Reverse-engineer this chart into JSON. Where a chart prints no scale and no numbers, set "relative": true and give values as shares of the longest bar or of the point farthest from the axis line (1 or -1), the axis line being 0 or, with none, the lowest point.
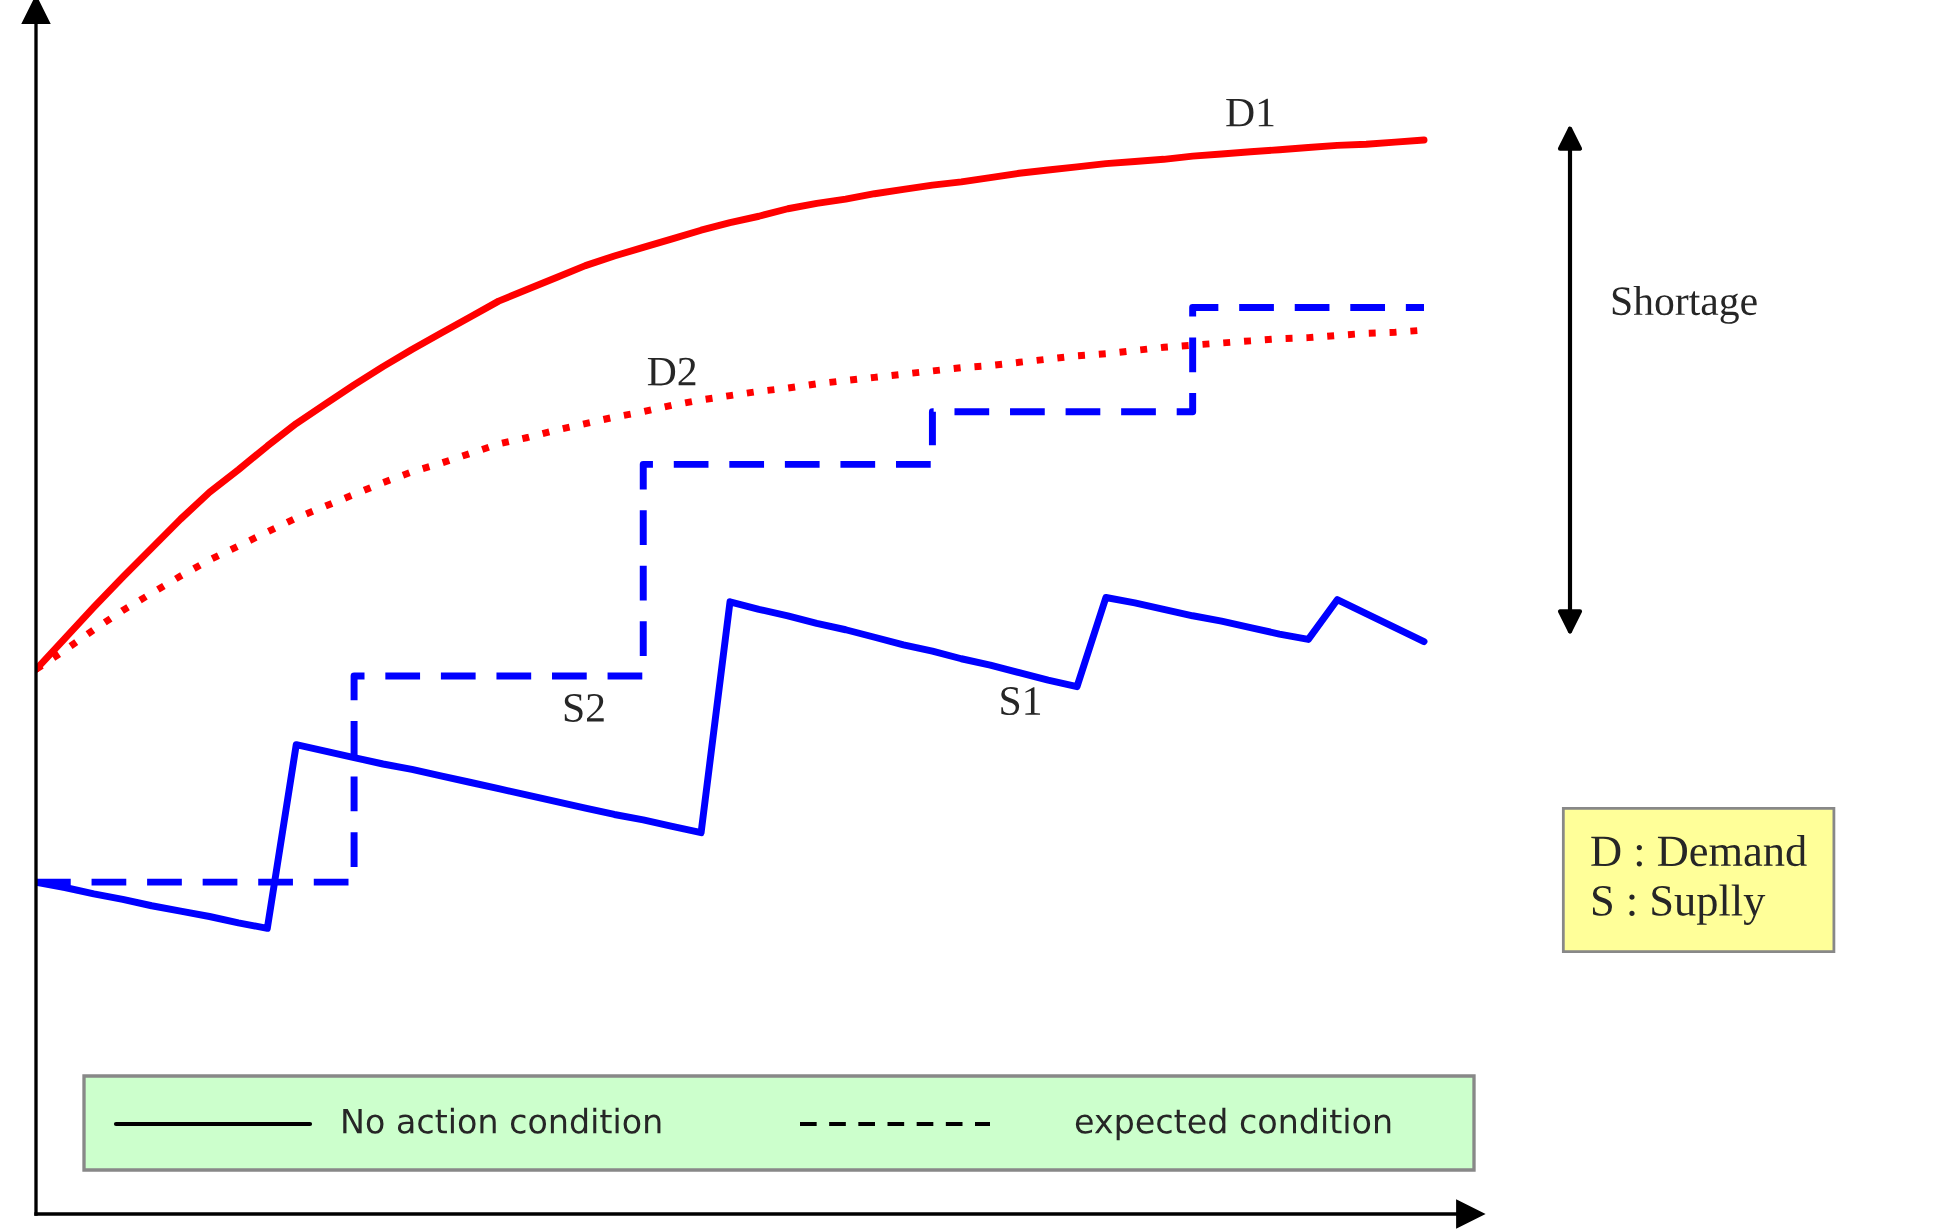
{
  "chart_data": {
    "type": "line",
    "relative": true,
    "categories": [
      null,
      null,
      null,
      null,
      null,
      null,
      null,
      null,
      null,
      null,
      null,
      null,
      null,
      null,
      null,
      null,
      null,
      null,
      null,
      null,
      null,
      null,
      null,
      null,
      null,
      null,
      null,
      null,
      null,
      null,
      null,
      null,
      null,
      null,
      null,
      null,
      null,
      null,
      null,
      null,
      null,
      null,
      null,
      null,
      null,
      null,
      null,
      null,
      null
    ],
    "annotations": [
      "Shortage",
      "D : Demand",
      "S : Suplly",
      "No action condition",
      "expected condition"
    ],
    "series": [
      {
        "name": "D1",
        "color": "#ff0000",
        "line_style": "solid",
        "values": [
          0.507,
          0.536,
          0.565,
          0.593,
          0.62,
          0.647,
          0.672,
          0.693,
          0.715,
          0.736,
          0.754,
          0.772,
          0.789,
          0.805,
          0.82,
          0.835,
          0.85,
          0.861,
          0.872,
          0.883,
          0.892,
          0.9,
          0.908,
          0.916,
          0.923,
          0.929,
          0.936,
          0.941,
          0.945,
          0.95,
          0.954,
          0.958,
          0.961,
          0.965,
          0.969,
          0.972,
          0.975,
          0.978,
          0.98,
          0.982,
          0.985,
          0.987,
          0.989,
          0.991,
          0.993,
          0.995,
          0.996,
          0.998,
          1.0
        ]
      },
      {
        "name": "D2",
        "color": "#ff0000",
        "line_style": "dotted",
        "values": [
          0.507,
          0.525,
          0.544,
          0.562,
          0.578,
          0.594,
          0.609,
          0.622,
          0.635,
          0.648,
          0.659,
          0.67,
          0.681,
          0.691,
          0.699,
          0.708,
          0.717,
          0.723,
          0.73,
          0.736,
          0.742,
          0.747,
          0.753,
          0.758,
          0.762,
          0.766,
          0.769,
          0.773,
          0.776,
          0.779,
          0.782,
          0.785,
          0.788,
          0.79,
          0.793,
          0.796,
          0.799,
          0.801,
          0.804,
          0.807,
          0.809,
          0.811,
          0.813,
          0.815,
          0.816,
          0.818,
          0.82,
          0.821,
          0.823
        ]
      },
      {
        "name": "S1",
        "color": "#0000ff",
        "line_style": "solid",
        "values": [
          0.309,
          0.304,
          0.298,
          0.293,
          0.287,
          0.282,
          0.277,
          0.271,
          0.266,
          0.437,
          0.431,
          0.425,
          0.419,
          0.414,
          0.408,
          0.402,
          0.396,
          0.39,
          0.384,
          0.378,
          0.372,
          0.367,
          0.361,
          0.355,
          0.57,
          0.563,
          0.557,
          0.55,
          0.544,
          0.537,
          0.53,
          0.524,
          0.517,
          0.511,
          0.504,
          0.497,
          0.491,
          0.574,
          0.569,
          0.563,
          0.557,
          0.552,
          0.546,
          0.54,
          0.535,
          0.572,
          0.559,
          0.546,
          0.533
        ]
      },
      {
        "name": "S2",
        "type": "step",
        "color": "#0000ff",
        "line_style": "dashed",
        "values": [
          0.309,
          0.309,
          0.309,
          0.309,
          0.309,
          0.309,
          0.309,
          0.309,
          0.309,
          0.309,
          0.309,
          0.501,
          0.501,
          0.501,
          0.501,
          0.501,
          0.501,
          0.501,
          0.501,
          0.501,
          0.501,
          0.698,
          0.698,
          0.698,
          0.698,
          0.698,
          0.698,
          0.698,
          0.698,
          0.698,
          0.698,
          0.747,
          0.747,
          0.747,
          0.747,
          0.747,
          0.747,
          0.747,
          0.747,
          0.747,
          0.844,
          0.844,
          0.844,
          0.844,
          0.844,
          0.844,
          0.844,
          0.844,
          0.844
        ]
      }
    ]
  }
}
